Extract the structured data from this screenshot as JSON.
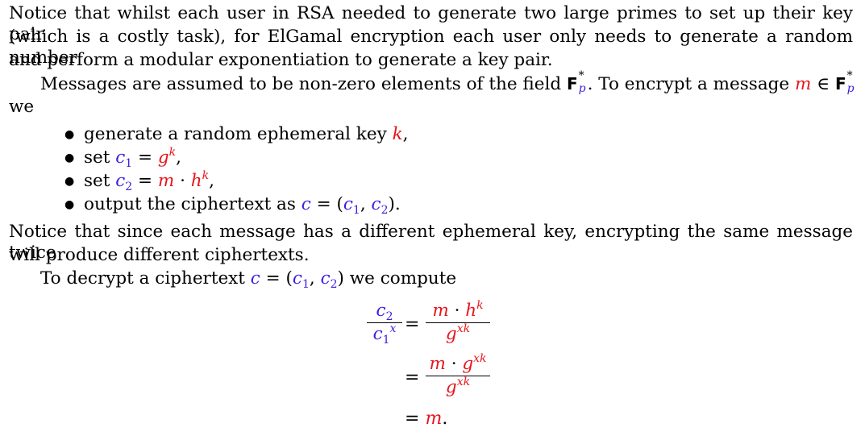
{
  "para1": {
    "line1": "Notice that whilst each user in RSA needed to generate two large primes to set up their key pair",
    "line2": "(which is a costly task), for ElGamal encryption each user only needs to generate a random number",
    "line3": "and perform a modular exponentiation to generate a key pair."
  },
  "para2": {
    "line1_a": "Messages are assumed to be non-zero elements of the field ",
    "field_F": "F",
    "field_star": "*",
    "field_p": "p",
    "line1_b": ". To encrypt a message ",
    "m": "m",
    "in": " ∈ ",
    "line2": "we"
  },
  "bullets": {
    "b1_text": "generate a random ephemeral key ",
    "b1_k": "k",
    "b1_end": ",",
    "b2_text": "set ",
    "b2_c": "c",
    "b2_sub": "1",
    "b2_eq": " = ",
    "b2_g": "g",
    "b2_sup": "k",
    "b2_end": ",",
    "b3_text": "set ",
    "b3_c": "c",
    "b3_sub": "2",
    "b3_eq": " = ",
    "b3_m": "m",
    "b3_dot": " · ",
    "b3_h": "h",
    "b3_sup": "k",
    "b3_end": ",",
    "b4_text": "output the ciphertext as ",
    "b4_c": "c",
    "b4_eq": " = (",
    "b4_c1": "c",
    "b4_sub1": "1",
    "b4_comma": ", ",
    "b4_c2": "c",
    "b4_sub2": "2",
    "b4_end": ")."
  },
  "para3": {
    "line1": "Notice that since each message has a different ephemeral key, encrypting the same message twice",
    "line2": "will produce different ciphertexts."
  },
  "para4": {
    "text": "To decrypt a ciphertext ",
    "c": "c",
    "eq": " = (",
    "c1": "c",
    "sub1": "1",
    "comma": ", ",
    "c2": "c",
    "sub2": "2",
    "end": ") we compute"
  },
  "equation": {
    "lhs_num_c": "c",
    "lhs_num_sub": "2",
    "lhs_den_c": "c",
    "lhs_den_sub": "1",
    "lhs_den_sup": "x",
    "equals": "=",
    "r1_num_m": "m",
    "r1_num_dot": " · ",
    "r1_num_h": "h",
    "r1_num_sup": "k",
    "r1_den_g": "g",
    "r1_den_sup": "xk",
    "r2_num_m": "m",
    "r2_num_dot": " · ",
    "r2_num_g": "g",
    "r2_num_sup": "xk",
    "r2_den_g": "g",
    "r2_den_sup": "xk",
    "r3_eq": "= ",
    "r3_m": "m",
    "r3_end": "."
  }
}
